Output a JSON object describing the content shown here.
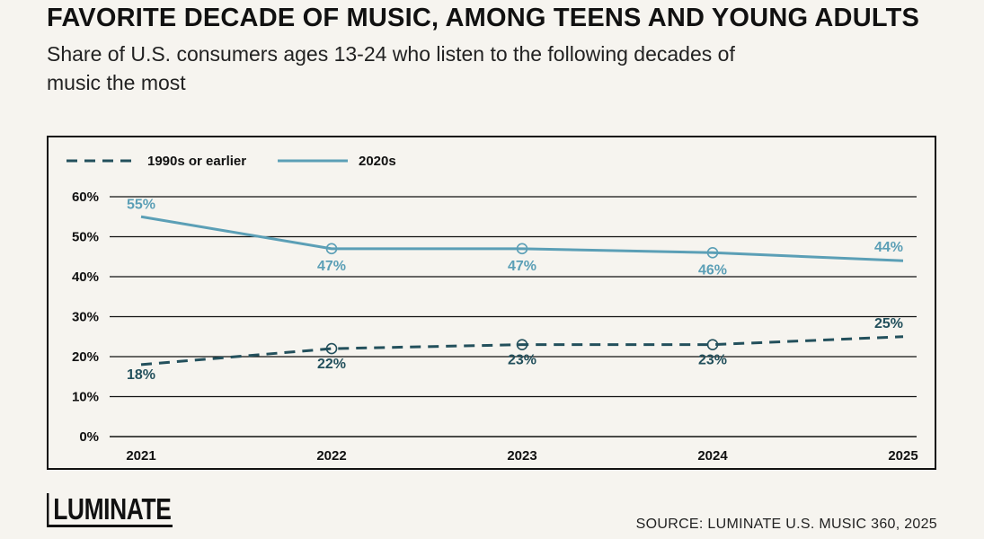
{
  "header": {
    "title": "FAVORITE DECADE OF MUSIC, AMONG TEENS AND YOUNG ADULTS",
    "subtitle": "Share of U.S. consumers ages 13-24 who listen to the following decades of music the most"
  },
  "footer": {
    "logo_text": "LUMINATE",
    "source": "SOURCE: LUMINATE U.S. MUSIC 360, 2025"
  },
  "chart_data": {
    "type": "line",
    "title": "FAVORITE DECADE OF MUSIC, AMONG TEENS AND YOUNG ADULTS",
    "subtitle": "Share of U.S. consumers ages 13-24 who listen to the following decades of music the most",
    "x": [
      "2021",
      "2022",
      "2023",
      "2024",
      "2025"
    ],
    "ylim": [
      0,
      60
    ],
    "yticks": [
      "0%",
      "10%",
      "20%",
      "30%",
      "40%",
      "50%",
      "60%"
    ],
    "grid": true,
    "legend_position": "top-left",
    "series": [
      {
        "name": "1990s or earlier",
        "values": [
          18,
          22,
          23,
          23,
          25
        ],
        "labels": [
          "18%",
          "22%",
          "23%",
          "23%",
          "25%"
        ],
        "color": "#23505c",
        "style": "dashed"
      },
      {
        "name": "2020s",
        "values": [
          55,
          47,
          47,
          46,
          44
        ],
        "labels": [
          "55%",
          "47%",
          "47%",
          "46%",
          "44%"
        ],
        "color": "#5b9fb6",
        "style": "solid"
      }
    ]
  }
}
